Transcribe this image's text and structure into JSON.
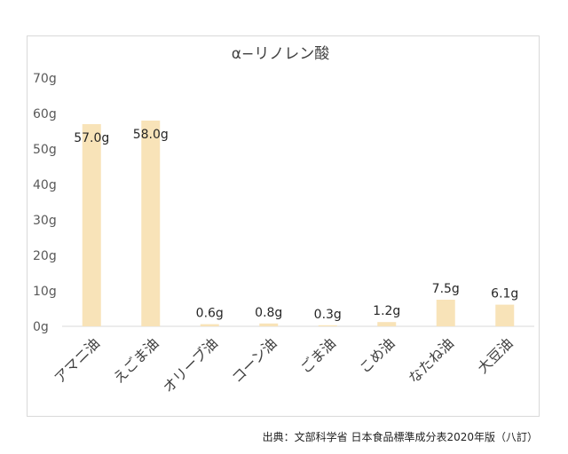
{
  "chart_data": {
    "type": "bar",
    "title": "α−リノレン酸",
    "categories": [
      "アマニ油",
      "えごま油",
      "オリーブ油",
      "コーン油",
      "ごま油",
      "こめ油",
      "なたね油",
      "大豆油"
    ],
    "values": [
      57.0,
      58.0,
      0.6,
      0.8,
      0.3,
      1.2,
      7.5,
      6.1
    ],
    "value_labels": [
      "57.0g",
      "58.0g",
      "0.6g",
      "0.8g",
      "0.3g",
      "1.2g",
      "7.5g",
      "6.1g"
    ],
    "ylim": [
      0,
      70
    ],
    "y_ticks": [
      0,
      10,
      20,
      30,
      40,
      50,
      60,
      70
    ],
    "y_tick_labels": [
      "0g",
      "10g",
      "20g",
      "30g",
      "40g",
      "50g",
      "60g",
      "70g"
    ],
    "xlabel": "",
    "ylabel": "",
    "grid": false,
    "bar_color": "#f8e3b8",
    "legend": "none"
  },
  "source_note": "出典：文部科学省 日本食品標準成分表2020年版（八訂）"
}
